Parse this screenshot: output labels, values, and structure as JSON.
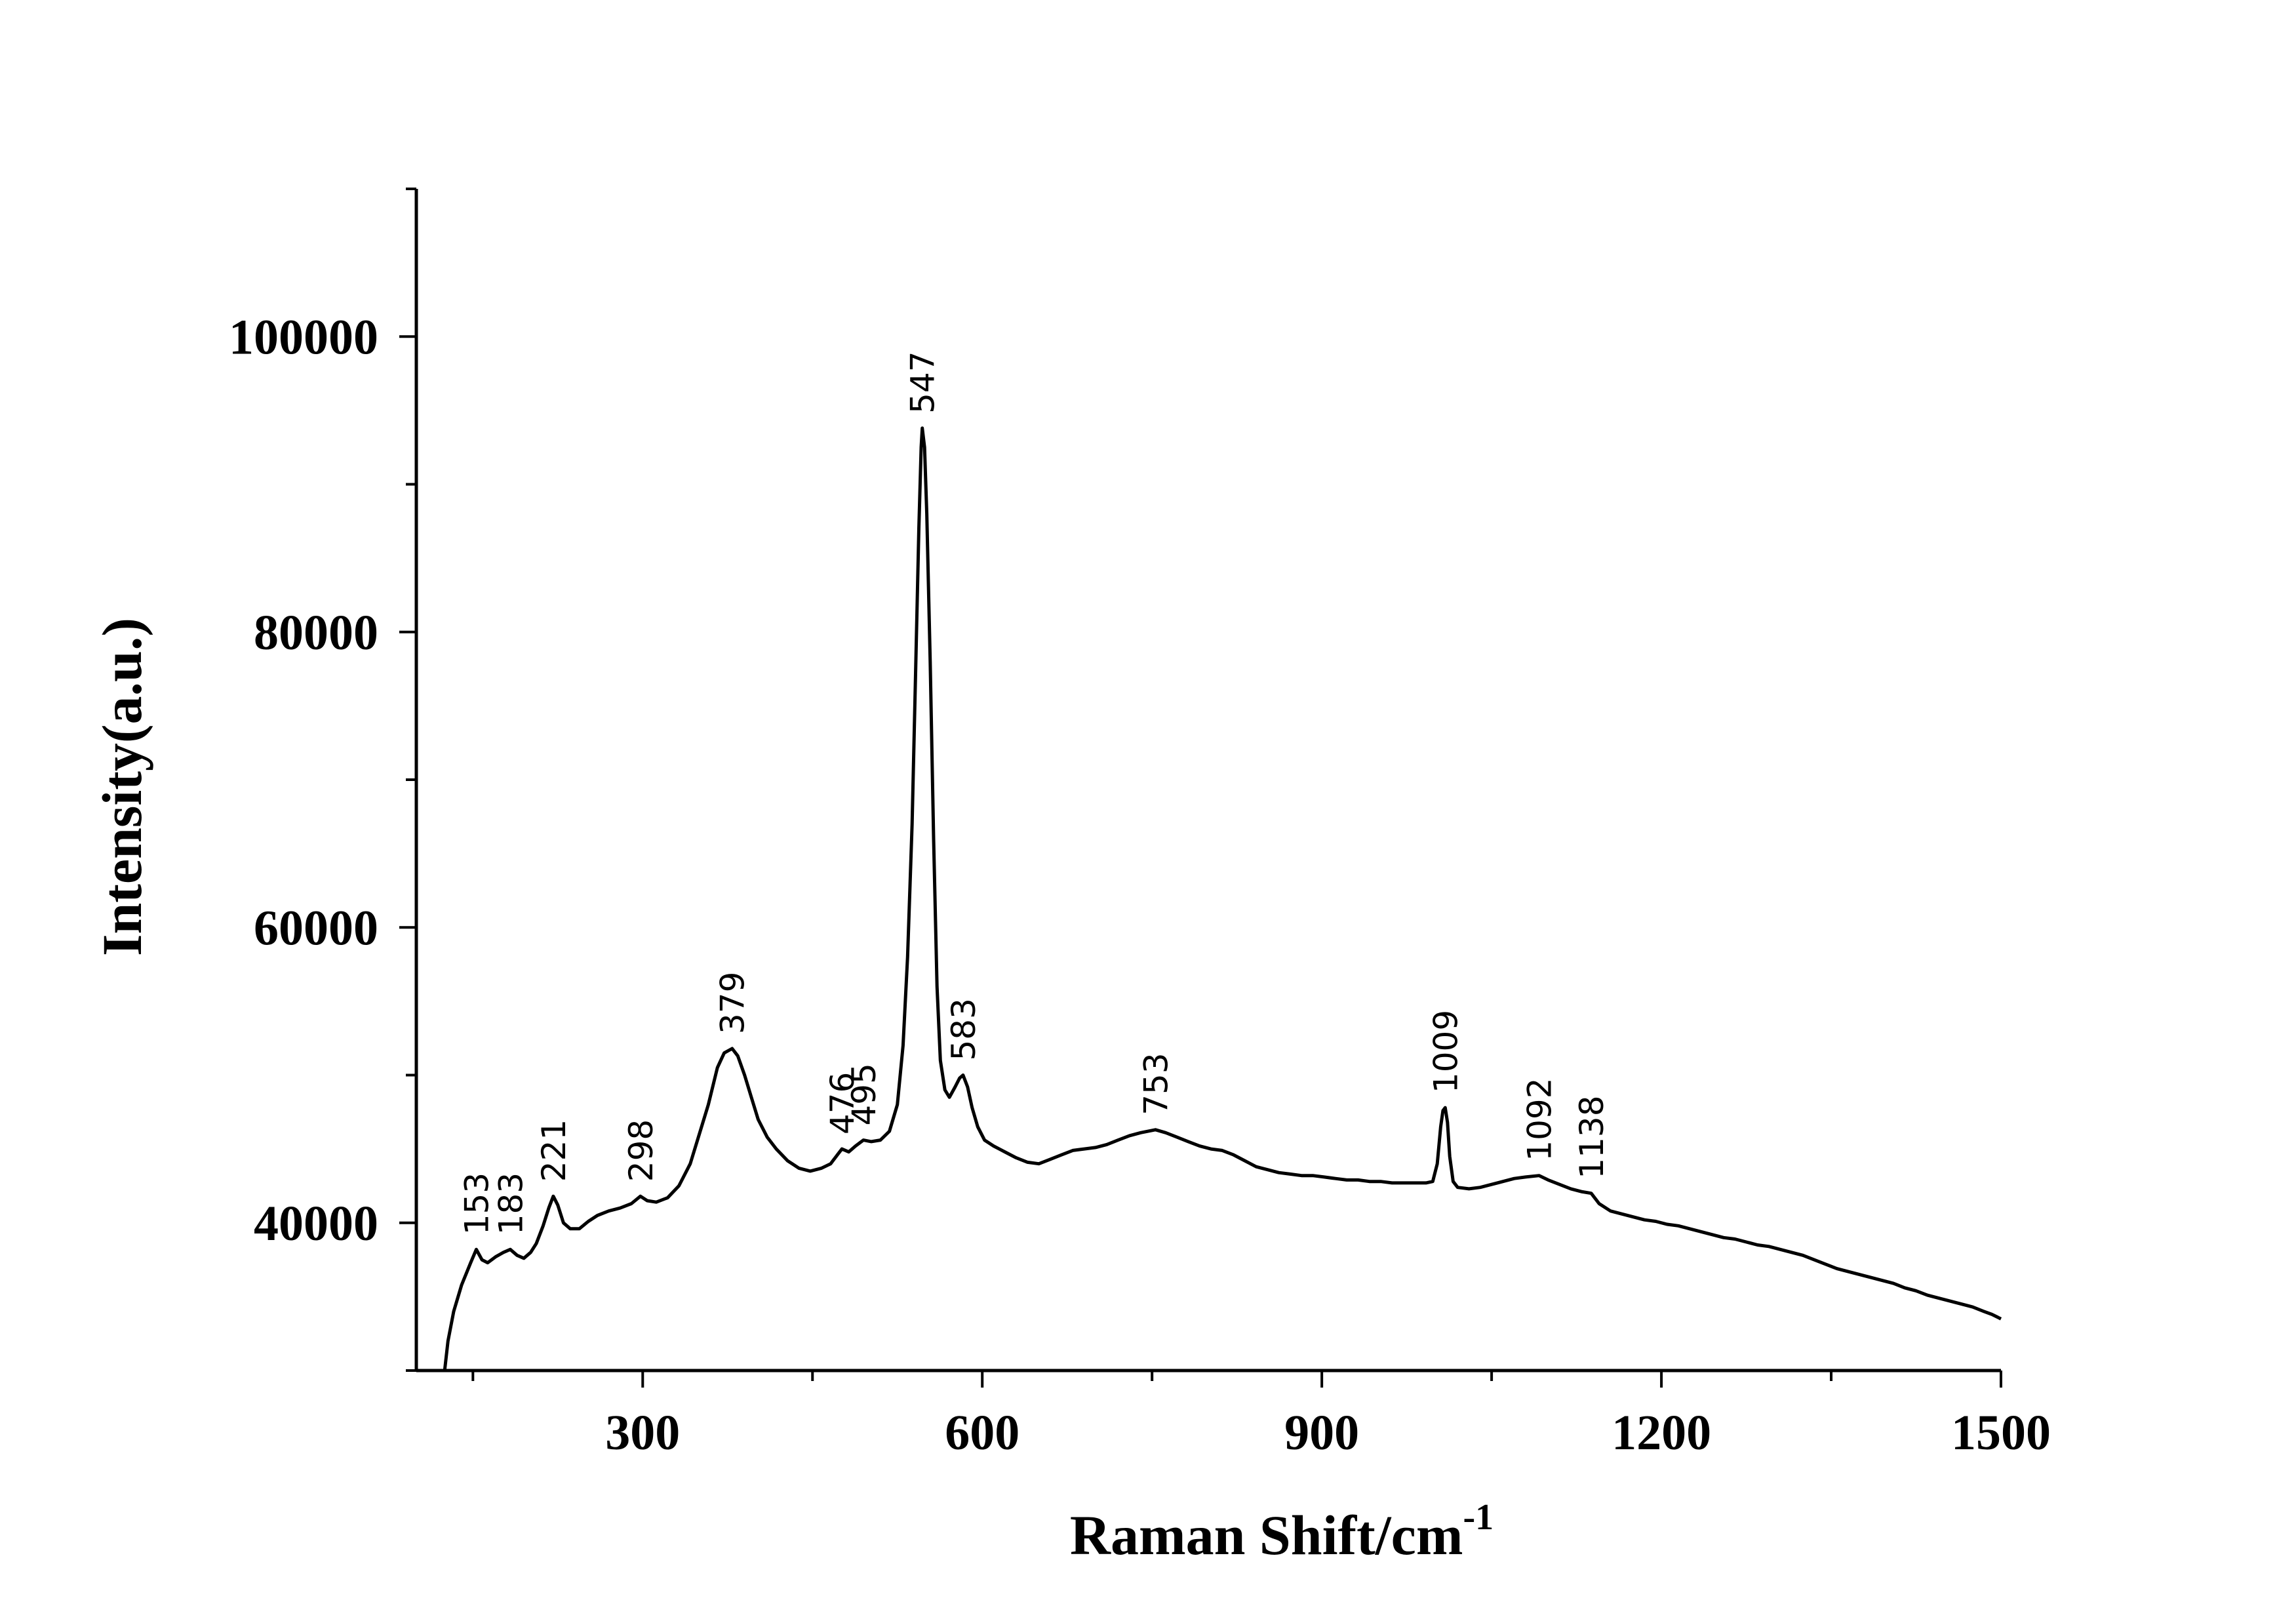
{
  "chart_data": {
    "type": "line",
    "title": "",
    "xlabel": "Raman Shift/cm",
    "xlabel_superscript": "-1",
    "ylabel": "Intensity(a.u.)",
    "xlim": [
      100,
      1500
    ],
    "ylim": [
      30000,
      110000
    ],
    "x_ticks": [
      300,
      600,
      900,
      1200,
      1500
    ],
    "x_tick_labels": [
      "300",
      "600",
      "900",
      "1200",
      "1500"
    ],
    "y_ticks": [
      40000,
      60000,
      80000,
      100000
    ],
    "y_tick_labels": [
      "40000",
      "60000",
      "80000",
      "100000"
    ],
    "grid": false,
    "legend": "none",
    "line_color": "#000000",
    "series": [
      {
        "points": [
          [
            125,
            30000
          ],
          [
            128,
            32000
          ],
          [
            133,
            34000
          ],
          [
            140,
            35800
          ],
          [
            148,
            37300
          ],
          [
            153,
            38200
          ],
          [
            158,
            37500
          ],
          [
            163,
            37300
          ],
          [
            170,
            37700
          ],
          [
            177,
            38000
          ],
          [
            183,
            38200
          ],
          [
            189,
            37800
          ],
          [
            195,
            37600
          ],
          [
            201,
            38000
          ],
          [
            206,
            38600
          ],
          [
            212,
            39800
          ],
          [
            217,
            41000
          ],
          [
            221,
            41800
          ],
          [
            225,
            41200
          ],
          [
            230,
            40000
          ],
          [
            236,
            39600
          ],
          [
            244,
            39600
          ],
          [
            252,
            40100
          ],
          [
            260,
            40500
          ],
          [
            270,
            40800
          ],
          [
            280,
            41000
          ],
          [
            290,
            41300
          ],
          [
            298,
            41800
          ],
          [
            304,
            41500
          ],
          [
            312,
            41400
          ],
          [
            322,
            41700
          ],
          [
            332,
            42500
          ],
          [
            342,
            44000
          ],
          [
            350,
            46000
          ],
          [
            358,
            48000
          ],
          [
            366,
            50500
          ],
          [
            372,
            51500
          ],
          [
            379,
            51800
          ],
          [
            384,
            51300
          ],
          [
            390,
            50000
          ],
          [
            396,
            48500
          ],
          [
            402,
            47000
          ],
          [
            410,
            45800
          ],
          [
            418,
            45000
          ],
          [
            428,
            44200
          ],
          [
            438,
            43700
          ],
          [
            448,
            43500
          ],
          [
            458,
            43700
          ],
          [
            466,
            44000
          ],
          [
            472,
            44600
          ],
          [
            476,
            45000
          ],
          [
            482,
            44800
          ],
          [
            488,
            45200
          ],
          [
            495,
            45600
          ],
          [
            502,
            45500
          ],
          [
            510,
            45600
          ],
          [
            518,
            46200
          ],
          [
            525,
            48000
          ],
          [
            530,
            52000
          ],
          [
            534,
            58000
          ],
          [
            538,
            67000
          ],
          [
            541,
            77000
          ],
          [
            544,
            87000
          ],
          [
            546,
            92500
          ],
          [
            547,
            93800
          ],
          [
            549,
            92500
          ],
          [
            551,
            88000
          ],
          [
            554,
            78000
          ],
          [
            557,
            66000
          ],
          [
            560,
            56000
          ],
          [
            563,
            51000
          ],
          [
            567,
            49000
          ],
          [
            571,
            48500
          ],
          [
            576,
            49200
          ],
          [
            580,
            49800
          ],
          [
            583,
            50000
          ],
          [
            587,
            49200
          ],
          [
            591,
            47800
          ],
          [
            596,
            46500
          ],
          [
            602,
            45600
          ],
          [
            610,
            45200
          ],
          [
            620,
            44800
          ],
          [
            630,
            44400
          ],
          [
            640,
            44100
          ],
          [
            650,
            44000
          ],
          [
            660,
            44300
          ],
          [
            670,
            44600
          ],
          [
            680,
            44900
          ],
          [
            690,
            45000
          ],
          [
            700,
            45100
          ],
          [
            710,
            45300
          ],
          [
            720,
            45600
          ],
          [
            730,
            45900
          ],
          [
            740,
            46100
          ],
          [
            753,
            46300
          ],
          [
            762,
            46100
          ],
          [
            772,
            45800
          ],
          [
            782,
            45500
          ],
          [
            792,
            45200
          ],
          [
            802,
            45000
          ],
          [
            812,
            44900
          ],
          [
            822,
            44600
          ],
          [
            832,
            44200
          ],
          [
            842,
            43800
          ],
          [
            852,
            43600
          ],
          [
            862,
            43400
          ],
          [
            872,
            43300
          ],
          [
            882,
            43200
          ],
          [
            892,
            43200
          ],
          [
            902,
            43100
          ],
          [
            912,
            43000
          ],
          [
            922,
            42900
          ],
          [
            932,
            42900
          ],
          [
            942,
            42800
          ],
          [
            952,
            42800
          ],
          [
            962,
            42700
          ],
          [
            972,
            42700
          ],
          [
            982,
            42700
          ],
          [
            992,
            42700
          ],
          [
            998,
            42800
          ],
          [
            1002,
            44000
          ],
          [
            1005,
            46500
          ],
          [
            1007,
            47600
          ],
          [
            1009,
            47800
          ],
          [
            1011,
            46800
          ],
          [
            1013,
            44500
          ],
          [
            1016,
            42800
          ],
          [
            1020,
            42400
          ],
          [
            1030,
            42300
          ],
          [
            1040,
            42400
          ],
          [
            1050,
            42600
          ],
          [
            1060,
            42800
          ],
          [
            1070,
            43000
          ],
          [
            1080,
            43100
          ],
          [
            1092,
            43200
          ],
          [
            1100,
            42900
          ],
          [
            1110,
            42600
          ],
          [
            1120,
            42300
          ],
          [
            1130,
            42100
          ],
          [
            1138,
            42000
          ],
          [
            1145,
            41300
          ],
          [
            1155,
            40800
          ],
          [
            1165,
            40600
          ],
          [
            1175,
            40400
          ],
          [
            1185,
            40200
          ],
          [
            1195,
            40100
          ],
          [
            1205,
            39900
          ],
          [
            1215,
            39800
          ],
          [
            1225,
            39600
          ],
          [
            1235,
            39400
          ],
          [
            1245,
            39200
          ],
          [
            1255,
            39000
          ],
          [
            1265,
            38900
          ],
          [
            1275,
            38700
          ],
          [
            1285,
            38500
          ],
          [
            1295,
            38400
          ],
          [
            1305,
            38200
          ],
          [
            1315,
            38000
          ],
          [
            1325,
            37800
          ],
          [
            1335,
            37500
          ],
          [
            1345,
            37200
          ],
          [
            1355,
            36900
          ],
          [
            1365,
            36700
          ],
          [
            1375,
            36500
          ],
          [
            1385,
            36300
          ],
          [
            1395,
            36100
          ],
          [
            1405,
            35900
          ],
          [
            1415,
            35600
          ],
          [
            1425,
            35400
          ],
          [
            1435,
            35100
          ],
          [
            1445,
            34900
          ],
          [
            1455,
            34700
          ],
          [
            1465,
            34500
          ],
          [
            1475,
            34300
          ],
          [
            1485,
            34000
          ],
          [
            1492,
            33800
          ],
          [
            1500,
            33500
          ]
        ]
      }
    ],
    "annotations": [
      {
        "text": "153",
        "x": 153,
        "y": 38200
      },
      {
        "text": "183",
        "x": 183,
        "y": 38200
      },
      {
        "text": "221",
        "x": 221,
        "y": 41800
      },
      {
        "text": "298",
        "x": 298,
        "y": 41800
      },
      {
        "text": "379",
        "x": 379,
        "y": 51800
      },
      {
        "text": "476",
        "x": 476,
        "y": 45000
      },
      {
        "text": "495",
        "x": 495,
        "y": 45600
      },
      {
        "text": "547",
        "x": 547,
        "y": 93800
      },
      {
        "text": "583",
        "x": 583,
        "y": 50000
      },
      {
        "text": "753",
        "x": 753,
        "y": 46300
      },
      {
        "text": "1009",
        "x": 1009,
        "y": 47800
      },
      {
        "text": "1092",
        "x": 1092,
        "y": 43200
      },
      {
        "text": "1138",
        "x": 1138,
        "y": 42000
      }
    ]
  }
}
